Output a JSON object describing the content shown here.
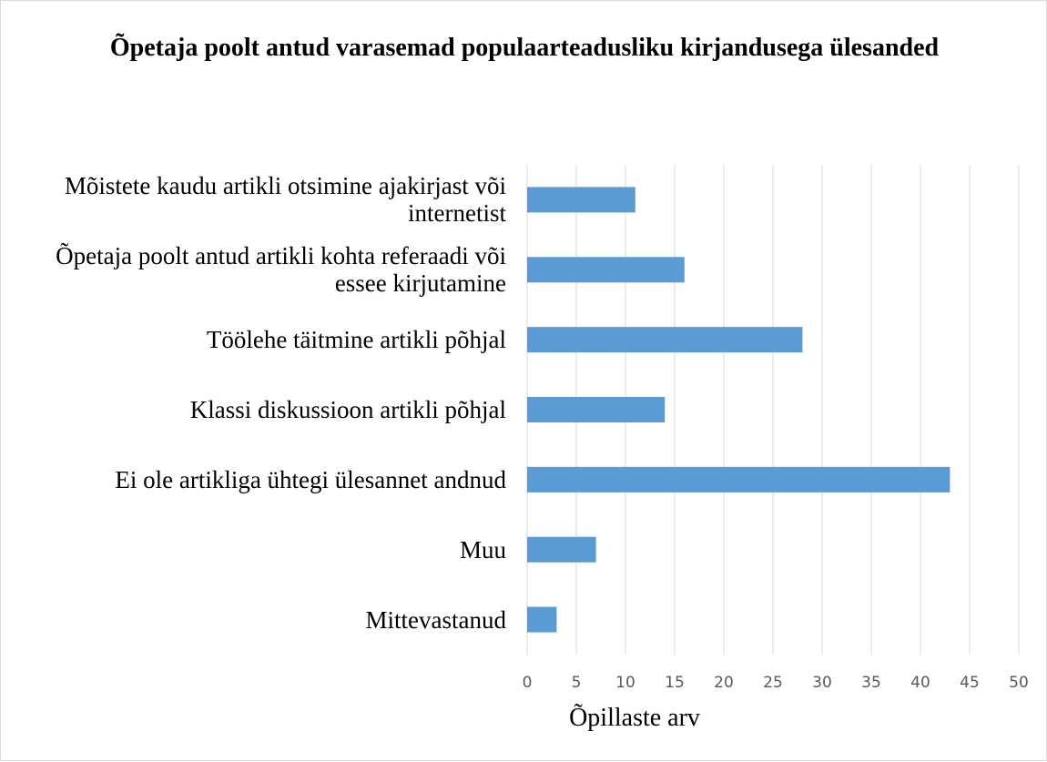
{
  "chart_data": {
    "type": "bar",
    "orientation": "horizontal",
    "title": "Õpetaja poolt antud varasemad populaarteadusliku kirjandusega ülesanded",
    "x_label": "Õpillaste arv",
    "categories": [
      "Mõistete kaudu artikli otsimine ajakirjast või internetist",
      "Õpetaja poolt antud artikli kohta referaadi või essee kirjutamine",
      "Töölehe täitmine artikli põhjal",
      "Klassi diskussioon artikli põhjal",
      "Ei ole artikliga ühtegi ülesannet andnud",
      "Muu",
      "Mittevastanud"
    ],
    "values": [
      11,
      16,
      28,
      14,
      43,
      7,
      3
    ],
    "color": "#5b9bd5",
    "xlim": [
      0,
      50
    ],
    "xticks": [
      0,
      5,
      10,
      15,
      20,
      25,
      30,
      35,
      40,
      45,
      50
    ],
    "grid": true
  }
}
